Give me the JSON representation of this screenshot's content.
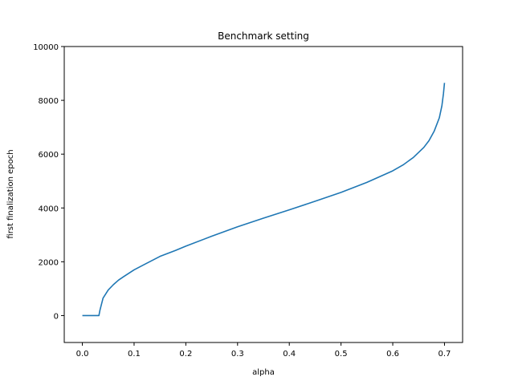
{
  "chart_data": {
    "type": "line",
    "title": "Benchmark setting",
    "xlabel": "alpha",
    "ylabel": "first finalization epoch",
    "xlim": [
      -0.035,
      0.735
    ],
    "ylim": [
      -1000,
      10000
    ],
    "xticks": [
      0.0,
      0.1,
      0.2,
      0.3,
      0.4,
      0.5,
      0.6,
      0.7
    ],
    "xtick_labels": [
      "0.0",
      "0.1",
      "0.2",
      "0.3",
      "0.4",
      "0.5",
      "0.6",
      "0.7"
    ],
    "yticks": [
      0,
      2000,
      4000,
      6000,
      8000,
      10000
    ],
    "ytick_labels": [
      "0",
      "2000",
      "4000",
      "6000",
      "8000",
      "10000"
    ],
    "grid": false,
    "color": "#1f77b4",
    "series": [
      {
        "x": [
          0.0,
          0.01,
          0.02,
          0.032,
          0.034,
          0.04,
          0.05,
          0.06,
          0.07,
          0.08,
          0.1,
          0.12,
          0.15,
          0.18,
          0.2,
          0.25,
          0.3,
          0.35,
          0.4,
          0.45,
          0.5,
          0.55,
          0.6,
          0.62,
          0.64,
          0.66,
          0.67,
          0.68,
          0.69,
          0.695,
          0.698,
          0.7
        ],
        "y": [
          0,
          0,
          0,
          0,
          200,
          650,
          950,
          1150,
          1320,
          1450,
          1700,
          1900,
          2200,
          2420,
          2580,
          2950,
          3300,
          3620,
          3930,
          4250,
          4580,
          4950,
          5380,
          5600,
          5880,
          6250,
          6500,
          6850,
          7350,
          7800,
          8250,
          8650
        ]
      }
    ]
  }
}
